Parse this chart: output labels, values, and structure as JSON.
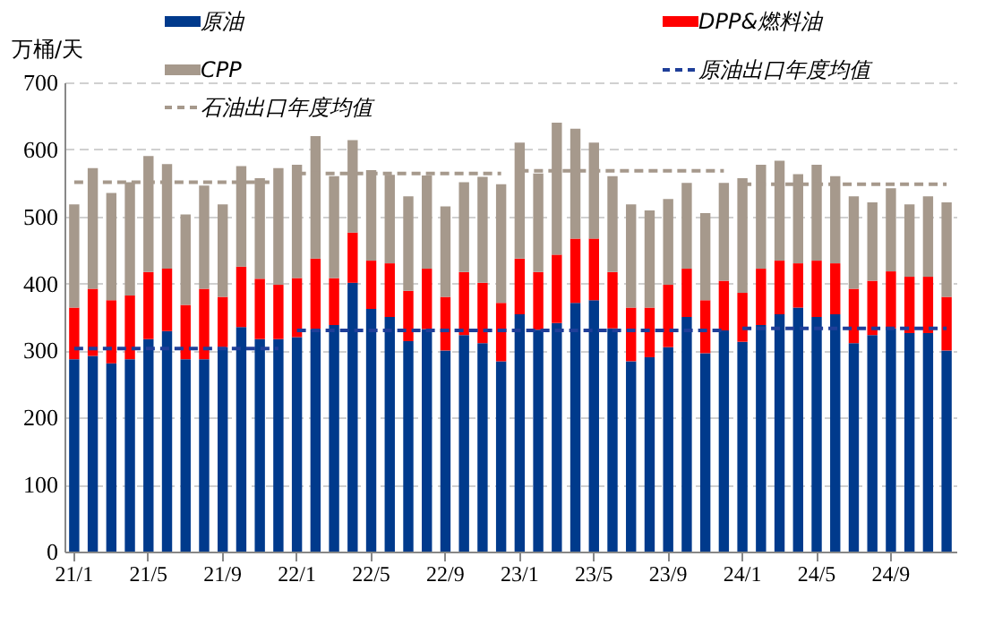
{
  "chart_data": {
    "type": "bar",
    "stacked": true,
    "ylabel": "万桶/天",
    "ylim": [
      0,
      700
    ],
    "yticks": [
      0,
      100,
      200,
      300,
      400,
      500,
      600,
      700
    ],
    "grid": "y",
    "legend": "top",
    "categories": [
      "21/1",
      null,
      null,
      null,
      "21/5",
      null,
      null,
      null,
      "21/9",
      null,
      null,
      null,
      "22/1",
      null,
      null,
      null,
      "22/5",
      null,
      null,
      null,
      "22/9",
      null,
      null,
      null,
      "23/1",
      null,
      null,
      null,
      "23/5",
      null,
      null,
      null,
      "23/9",
      null,
      null,
      null,
      "24/1",
      null,
      null,
      null,
      "24/5",
      null,
      null,
      null,
      "24/9",
      null,
      null,
      null
    ],
    "series": [
      {
        "name": "原油",
        "color": "#003a8c",
        "values": [
          287,
          292,
          281,
          287,
          317,
          329,
          287,
          287,
          305,
          335,
          317,
          317,
          320,
          332,
          338,
          401,
          362,
          350,
          314,
          332,
          300,
          323,
          311,
          284,
          354,
          331,
          341,
          371,
          375,
          333,
          284,
          290,
          305,
          350,
          296,
          330,
          313,
          338,
          354,
          364,
          350,
          354,
          311,
          323,
          333,
          326,
          326,
          300
        ]
      },
      {
        "name": "DPP&燃料油",
        "color": "#ff0000",
        "values": [
          77,
          100,
          94,
          95,
          100,
          93,
          81,
          105,
          75,
          90,
          90,
          81,
          88,
          105,
          70,
          75,
          72,
          80,
          75,
          90,
          80,
          94,
          90,
          87,
          83,
          86,
          102,
          96,
          92,
          84,
          80,
          74,
          93,
          72,
          79,
          74,
          73,
          84,
          80,
          66,
          84,
          76,
          81,
          81,
          85,
          84,
          84,
          80
        ]
      },
      {
        "name": "CPP",
        "color": "#a6998c",
        "values": [
          154,
          180,
          160,
          169,
          173,
          156,
          135,
          154,
          138,
          150,
          150,
          174,
          169,
          183,
          152,
          138,
          135,
          132,
          141,
          139,
          135,
          134,
          158,
          177,
          173,
          147,
          197,
          164,
          143,
          143,
          154,
          145,
          128,
          128,
          130,
          146,
          171,
          155,
          149,
          133,
          143,
          130,
          138,
          117,
          124,
          108,
          120,
          141
        ]
      },
      {
        "name": "原油出口年度均值",
        "type": "line",
        "line_style": "dashed",
        "color": "#1f3f99",
        "values": [
          303,
          303,
          303,
          303,
          303,
          303,
          303,
          303,
          303,
          303,
          303,
          303,
          330,
          330,
          330,
          330,
          330,
          330,
          330,
          330,
          330,
          330,
          330,
          330,
          330,
          330,
          330,
          330,
          330,
          330,
          330,
          330,
          330,
          330,
          330,
          330,
          333,
          333,
          333,
          333,
          333,
          333,
          333,
          333,
          333,
          333,
          333,
          333
        ]
      },
      {
        "name": "石油出口年度均值",
        "type": "line",
        "line_style": "dashed",
        "color": "#a6998c",
        "values": [
          551,
          551,
          551,
          551,
          551,
          551,
          551,
          551,
          551,
          551,
          551,
          551,
          564,
          564,
          564,
          564,
          564,
          564,
          564,
          564,
          564,
          564,
          564,
          564,
          568,
          568,
          568,
          568,
          568,
          568,
          568,
          568,
          568,
          568,
          568,
          568,
          548,
          548,
          548,
          548,
          548,
          548,
          548,
          548,
          548,
          548,
          548,
          548
        ]
      }
    ]
  }
}
